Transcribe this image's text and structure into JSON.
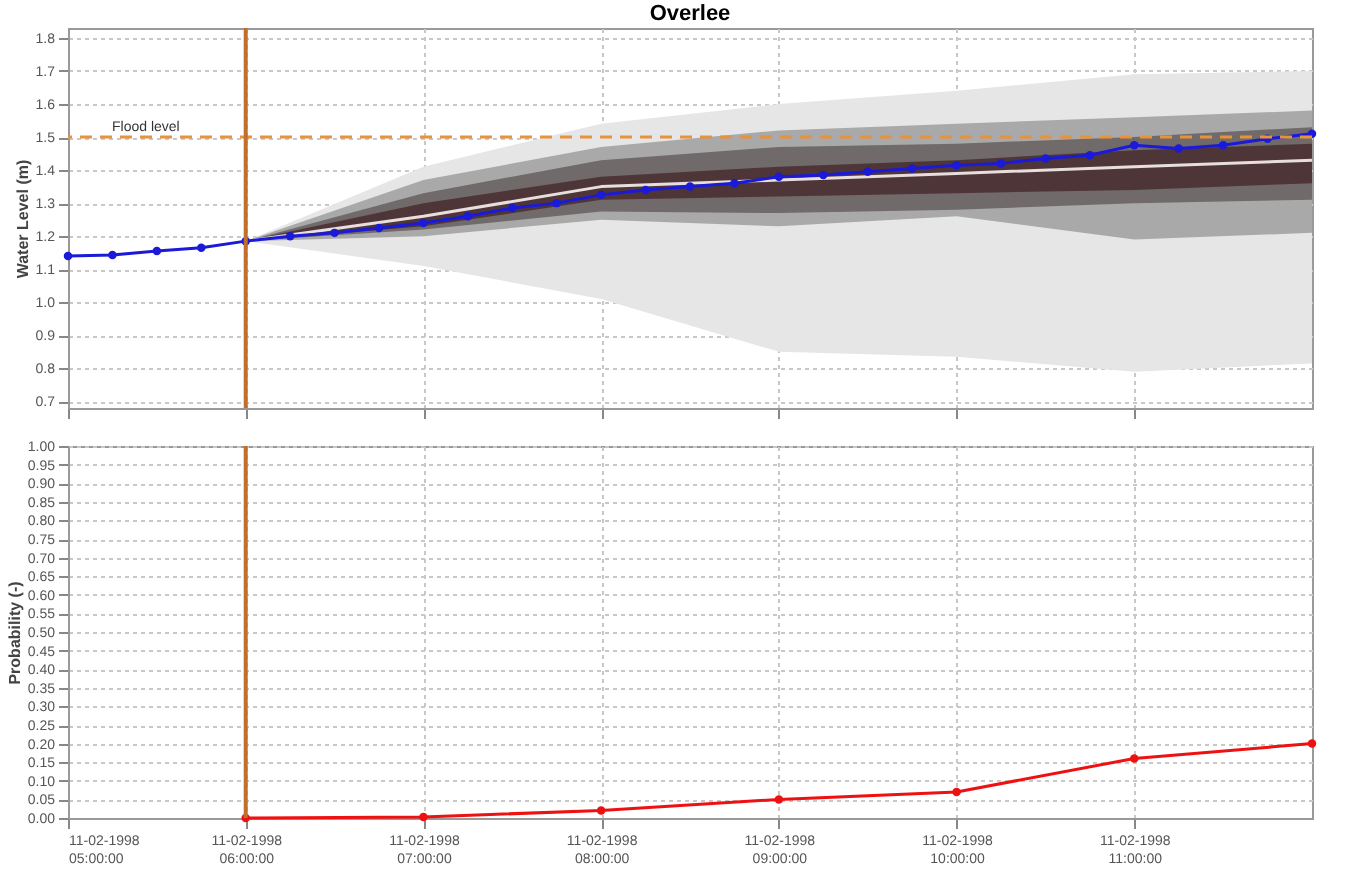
{
  "chart_data": [
    {
      "type": "line",
      "title": "Overlee",
      "ylabel": "Water Level (m)",
      "xlim": [
        "1998-02-11T05:00",
        "1998-02-11T12:00"
      ],
      "ylim": [
        0.68,
        1.83
      ],
      "xticks": [
        "1998-02-11T05:00",
        "1998-02-11T06:00",
        "1998-02-11T07:00",
        "1998-02-11T08:00",
        "1998-02-11T09:00",
        "1998-02-11T10:00",
        "1998-02-11T11:00"
      ],
      "yticks": [
        0.7,
        0.8,
        0.9,
        {
          "value": 1,
          "label": "1.0"
        },
        1.1,
        1.2,
        1.3,
        1.4,
        1.5,
        1.6,
        1.7,
        1.8
      ],
      "tick_labels": "y",
      "grid": true,
      "marker": "circle",
      "series": [
        {
          "type": "area",
          "color": "#e6e6e6",
          "x": [
            "1998-02-11T06:00",
            "1998-02-11T07:00",
            "1998-02-11T08:00",
            "1998-02-11T09:00",
            "1998-02-11T10:00",
            "1998-02-11T11:00",
            "1998-02-11T12:00"
          ],
          "values": [
            null,
            null,
            null,
            null,
            null,
            null,
            null
          ],
          "lower": [
            1.185,
            1.11,
            1.01,
            0.85,
            0.835,
            0.79,
            0.815
          ],
          "upper": [
            1.185,
            1.41,
            1.54,
            1.6,
            1.64,
            1.69,
            1.7
          ]
        },
        {
          "type": "area",
          "color": "#a9a9a9",
          "x": [
            "1998-02-11T06:00",
            "1998-02-11T07:00",
            "1998-02-11T08:00",
            "1998-02-11T09:00",
            "1998-02-11T10:00",
            "1998-02-11T11:00",
            "1998-02-11T12:00"
          ],
          "values": [
            null,
            null,
            null,
            null,
            null,
            null,
            null
          ],
          "lower": [
            1.185,
            1.2,
            1.25,
            1.23,
            1.26,
            1.19,
            1.21
          ],
          "upper": [
            1.185,
            1.37,
            1.47,
            1.52,
            1.54,
            1.56,
            1.58
          ]
        },
        {
          "type": "area",
          "color": "#706a6a",
          "x": [
            "1998-02-11T06:00",
            "1998-02-11T07:00",
            "1998-02-11T08:00",
            "1998-02-11T09:00",
            "1998-02-11T10:00",
            "1998-02-11T11:00",
            "1998-02-11T12:00"
          ],
          "values": [
            null,
            null,
            null,
            null,
            null,
            null,
            null
          ],
          "lower": [
            1.185,
            1.22,
            1.275,
            1.27,
            1.28,
            1.3,
            1.31
          ],
          "upper": [
            1.185,
            1.33,
            1.43,
            1.47,
            1.48,
            1.5,
            1.53
          ]
        },
        {
          "type": "area",
          "color": "#4e3538",
          "x": [
            "1998-02-11T06:00",
            "1998-02-11T07:00",
            "1998-02-11T08:00",
            "1998-02-11T09:00",
            "1998-02-11T10:00",
            "1998-02-11T11:00",
            "1998-02-11T12:00"
          ],
          "values": [
            null,
            null,
            null,
            null,
            null,
            null,
            null
          ],
          "lower": [
            1.185,
            1.23,
            1.31,
            1.32,
            1.33,
            1.34,
            1.36
          ],
          "upper": [
            1.185,
            1.3,
            1.38,
            1.41,
            1.43,
            1.46,
            1.48
          ]
        },
        {
          "color": "#e8dede",
          "marker": "none",
          "x": [
            "1998-02-11T06:00",
            "1998-02-11T07:00",
            "1998-02-11T08:00",
            "1998-02-11T09:00",
            "1998-02-11T10:00",
            "1998-02-11T11:00",
            "1998-02-11T12:00"
          ],
          "values": [
            1.185,
            1.26,
            1.35,
            1.37,
            1.39,
            1.41,
            1.43
          ]
        },
        {
          "color": "#1a1ad8",
          "x": [
            "1998-02-11T05:00",
            "1998-02-11T05:15",
            "1998-02-11T05:30",
            "1998-02-11T05:45",
            "1998-02-11T06:00",
            "1998-02-11T06:15",
            "1998-02-11T06:30",
            "1998-02-11T06:45",
            "1998-02-11T07:00",
            "1998-02-11T07:15",
            "1998-02-11T07:30",
            "1998-02-11T07:45",
            "1998-02-11T08:00",
            "1998-02-11T08:15",
            "1998-02-11T08:30",
            "1998-02-11T08:45",
            "1998-02-11T09:00",
            "1998-02-11T09:15",
            "1998-02-11T09:30",
            "1998-02-11T09:45",
            "1998-02-11T10:00",
            "1998-02-11T10:15",
            "1998-02-11T10:30",
            "1998-02-11T10:45",
            "1998-02-11T11:00",
            "1998-02-11T11:15",
            "1998-02-11T11:30",
            "1998-02-11T11:45",
            "1998-02-11T12:00"
          ],
          "values": [
            1.14,
            1.143,
            1.155,
            1.165,
            1.185,
            1.2,
            1.21,
            1.225,
            1.24,
            1.26,
            1.285,
            1.3,
            1.325,
            1.34,
            1.35,
            1.36,
            1.38,
            1.385,
            1.395,
            1.405,
            1.415,
            1.42,
            1.435,
            1.445,
            1.475,
            1.465,
            1.475,
            1.495,
            1.51
          ]
        }
      ],
      "ref_lines": [
        {
          "axis": "y",
          "value": 1.5,
          "label": "Flood level",
          "color": "#e8923a",
          "line_style": "dashed"
        },
        {
          "axis": "x",
          "value": "1998-02-11T06:00",
          "label": null,
          "color": "#c0702a",
          "line_style": "solid"
        }
      ]
    },
    {
      "type": "line",
      "ylabel": "Probability (-)",
      "xlim": [
        "1998-02-11T05:00",
        "1998-02-11T12:00"
      ],
      "ylim": [
        0,
        1
      ],
      "xticks": [
        {
          "value": "1998-02-11T05:00",
          "label": "11-02-1998 05:00:00"
        },
        {
          "value": "1998-02-11T06:00",
          "label": "11-02-1998 06:00:00"
        },
        {
          "value": "1998-02-11T07:00",
          "label": "11-02-1998 07:00:00"
        },
        {
          "value": "1998-02-11T08:00",
          "label": "11-02-1998 08:00:00"
        },
        {
          "value": "1998-02-11T09:00",
          "label": "11-02-1998 09:00:00"
        },
        {
          "value": "1998-02-11T10:00",
          "label": "11-02-1998 10:00:00"
        },
        {
          "value": "1998-02-11T11:00",
          "label": "11-02-1998 11:00:00"
        }
      ],
      "yticks": [
        {
          "value": 0,
          "label": "0.00"
        },
        0.05,
        {
          "value": 0.1,
          "label": "0.10"
        },
        0.15,
        {
          "value": 0.2,
          "label": "0.20"
        },
        0.25,
        {
          "value": 0.3,
          "label": "0.30"
        },
        0.35,
        {
          "value": 0.4,
          "label": "0.40"
        },
        0.45,
        {
          "value": 0.5,
          "label": "0.50"
        },
        0.55,
        {
          "value": 0.6,
          "label": "0.60"
        },
        0.65,
        {
          "value": 0.7,
          "label": "0.70"
        },
        0.75,
        {
          "value": 0.8,
          "label": "0.80"
        },
        0.85,
        {
          "value": 0.9,
          "label": "0.90"
        },
        0.95,
        {
          "value": 1,
          "label": "1.00"
        }
      ],
      "grid": true,
      "marker": "circle",
      "series": [
        {
          "color": "#ee1111",
          "x": [
            "1998-02-11T06:00",
            "1998-02-11T07:00",
            "1998-02-11T08:00",
            "1998-02-11T09:00",
            "1998-02-11T10:00",
            "1998-02-11T11:00",
            "1998-02-11T12:00"
          ],
          "values": [
            0,
            0.003,
            0.02,
            0.05,
            0.07,
            0.16,
            0.2
          ]
        }
      ],
      "ref_lines": [
        {
          "axis": "x",
          "value": "1998-02-11T06:00",
          "label": null,
          "color": "#c0702a",
          "line_style": "solid"
        }
      ]
    }
  ]
}
